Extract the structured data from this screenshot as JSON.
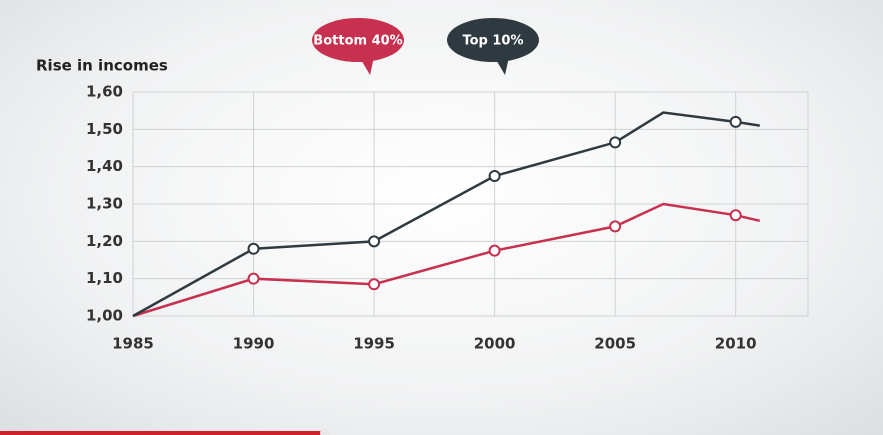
{
  "chart_data": {
    "type": "line",
    "y_label": "Rise in incomes",
    "x": [
      1985,
      1990,
      1995,
      2000,
      2005,
      2007,
      2010,
      2011
    ],
    "series": [
      {
        "name": "Bottom 40%",
        "color": "#c8304f",
        "values": [
          1.0,
          1.1,
          1.085,
          1.175,
          1.24,
          1.3,
          1.27,
          1.255
        ]
      },
      {
        "name": "Top 10%",
        "color": "#2e3a40",
        "values": [
          1.0,
          1.18,
          1.2,
          1.375,
          1.465,
          1.545,
          1.52,
          1.51
        ]
      }
    ],
    "xlim": [
      1985,
      2013
    ],
    "xticks": [
      1985,
      1990,
      1995,
      2000,
      2005,
      2010
    ],
    "ylim": [
      1.0,
      1.6
    ],
    "yticks": [
      {
        "value": 1.0,
        "label": "1,00"
      },
      {
        "value": 1.1,
        "label": "1,10"
      },
      {
        "value": 1.2,
        "label": "1,20"
      },
      {
        "value": 1.3,
        "label": "1,30"
      },
      {
        "value": 1.4,
        "label": "1,40"
      },
      {
        "value": 1.5,
        "label": "1,50"
      },
      {
        "value": 1.6,
        "label": "1,60"
      }
    ],
    "grid": true
  }
}
